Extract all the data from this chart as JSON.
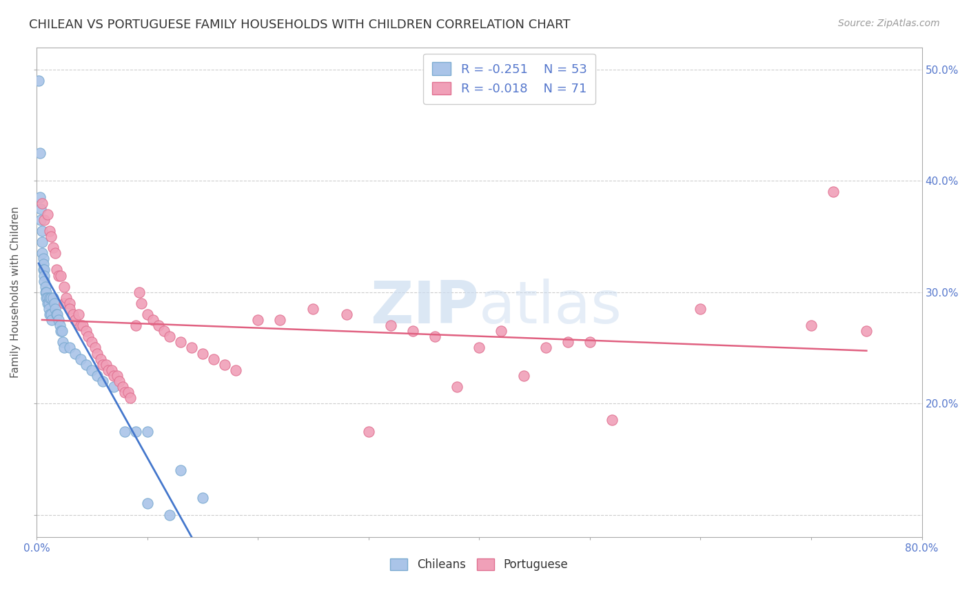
{
  "title": "CHILEAN VS PORTUGUESE FAMILY HOUSEHOLDS WITH CHILDREN CORRELATION CHART",
  "source": "Source: ZipAtlas.com",
  "ylabel": "Family Households with Children",
  "xlim": [
    0.0,
    0.8
  ],
  "ylim": [
    0.08,
    0.52
  ],
  "xticks": [
    0.0,
    0.1,
    0.2,
    0.3,
    0.4,
    0.5,
    0.6,
    0.7,
    0.8
  ],
  "xticklabels": [
    "0.0%",
    "",
    "",
    "",
    "",
    "",
    "",
    "",
    "80.0%"
  ],
  "yticks": [
    0.1,
    0.2,
    0.3,
    0.4,
    0.5
  ],
  "yticklabels": [
    "",
    "20.0%",
    "30.0%",
    "40.0%",
    "50.0%"
  ],
  "title_color": "#333333",
  "axis_color": "#5577cc",
  "grid_color": "#cccccc",
  "legend_R1": "-0.251",
  "legend_N1": "53",
  "legend_R2": "-0.018",
  "legend_N2": "71",
  "legend_label1": "Chileans",
  "legend_label2": "Portuguese",
  "chilean_color": "#aac4e8",
  "chilean_edge": "#7aaad0",
  "portuguese_color": "#f0a0b8",
  "portuguese_edge": "#e07090",
  "line_color_chilean": "#4477cc",
  "line_color_portuguese": "#e06080",
  "dashed_color": "#aaccee",
  "chilean_x": [
    0.002,
    0.003,
    0.003,
    0.004,
    0.004,
    0.005,
    0.005,
    0.005,
    0.006,
    0.006,
    0.006,
    0.007,
    0.007,
    0.007,
    0.008,
    0.008,
    0.009,
    0.009,
    0.01,
    0.01,
    0.011,
    0.011,
    0.012,
    0.012,
    0.013,
    0.013,
    0.014,
    0.015,
    0.016,
    0.017,
    0.018,
    0.019,
    0.02,
    0.021,
    0.022,
    0.023,
    0.024,
    0.025,
    0.03,
    0.035,
    0.04,
    0.045,
    0.05,
    0.055,
    0.06,
    0.07,
    0.08,
    0.09,
    0.1,
    0.1,
    0.12,
    0.13,
    0.15
  ],
  "chilean_y": [
    0.49,
    0.425,
    0.385,
    0.375,
    0.365,
    0.355,
    0.345,
    0.335,
    0.33,
    0.325,
    0.32,
    0.32,
    0.315,
    0.31,
    0.305,
    0.3,
    0.3,
    0.295,
    0.295,
    0.29,
    0.29,
    0.285,
    0.295,
    0.28,
    0.295,
    0.28,
    0.275,
    0.295,
    0.29,
    0.285,
    0.28,
    0.28,
    0.275,
    0.27,
    0.265,
    0.265,
    0.255,
    0.25,
    0.25,
    0.245,
    0.24,
    0.235,
    0.23,
    0.225,
    0.22,
    0.215,
    0.175,
    0.175,
    0.175,
    0.11,
    0.1,
    0.14,
    0.115
  ],
  "portuguese_x": [
    0.005,
    0.007,
    0.01,
    0.012,
    0.013,
    0.015,
    0.017,
    0.018,
    0.02,
    0.022,
    0.025,
    0.025,
    0.027,
    0.03,
    0.03,
    0.033,
    0.035,
    0.038,
    0.04,
    0.042,
    0.045,
    0.047,
    0.05,
    0.053,
    0.055,
    0.058,
    0.06,
    0.063,
    0.065,
    0.068,
    0.07,
    0.073,
    0.075,
    0.078,
    0.08,
    0.083,
    0.085,
    0.09,
    0.093,
    0.095,
    0.1,
    0.105,
    0.11,
    0.115,
    0.12,
    0.13,
    0.14,
    0.15,
    0.16,
    0.17,
    0.18,
    0.2,
    0.22,
    0.25,
    0.28,
    0.3,
    0.32,
    0.34,
    0.36,
    0.38,
    0.4,
    0.42,
    0.44,
    0.46,
    0.48,
    0.5,
    0.52,
    0.6,
    0.7,
    0.72,
    0.75
  ],
  "portuguese_y": [
    0.38,
    0.365,
    0.37,
    0.355,
    0.35,
    0.34,
    0.335,
    0.32,
    0.315,
    0.315,
    0.305,
    0.29,
    0.295,
    0.29,
    0.285,
    0.28,
    0.275,
    0.28,
    0.27,
    0.27,
    0.265,
    0.26,
    0.255,
    0.25,
    0.245,
    0.24,
    0.235,
    0.235,
    0.23,
    0.23,
    0.225,
    0.225,
    0.22,
    0.215,
    0.21,
    0.21,
    0.205,
    0.27,
    0.3,
    0.29,
    0.28,
    0.275,
    0.27,
    0.265,
    0.26,
    0.255,
    0.25,
    0.245,
    0.24,
    0.235,
    0.23,
    0.275,
    0.275,
    0.285,
    0.28,
    0.175,
    0.27,
    0.265,
    0.26,
    0.215,
    0.25,
    0.265,
    0.225,
    0.25,
    0.255,
    0.255,
    0.185,
    0.285,
    0.27,
    0.39,
    0.265
  ]
}
